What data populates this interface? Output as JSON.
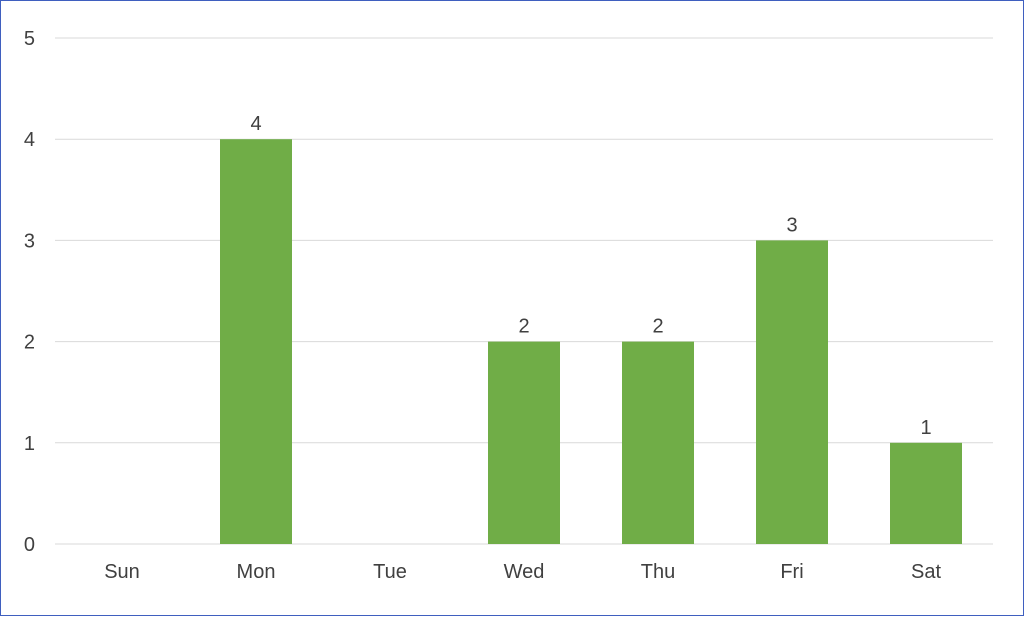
{
  "chart_data": {
    "type": "bar",
    "categories": [
      "Sun",
      "Mon",
      "Tue",
      "Wed",
      "Thu",
      "Fri",
      "Sat"
    ],
    "values": [
      0,
      4,
      0,
      2,
      2,
      3,
      1
    ],
    "data_labels": [
      "",
      "4",
      "",
      "2",
      "2",
      "3",
      "1"
    ],
    "yticks": [
      "0",
      "1",
      "2",
      "3",
      "4",
      "5"
    ],
    "ylim": [
      0,
      5
    ],
    "grid": true,
    "bar_color": "#70ad47",
    "title": "",
    "xlabel": "",
    "ylabel": ""
  }
}
